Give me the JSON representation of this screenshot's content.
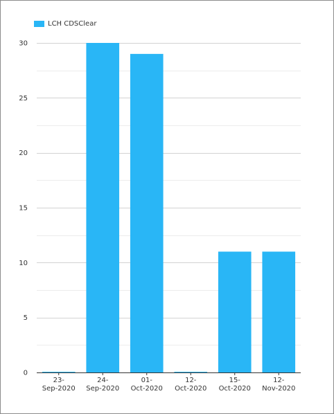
{
  "chart_data": {
    "type": "bar",
    "categories": [
      [
        "23-",
        "Sep-2020"
      ],
      [
        "24-",
        "Sep-2020"
      ],
      [
        "01-",
        "Oct-2020"
      ],
      [
        "12-",
        "Oct-2020"
      ],
      [
        "15-",
        "Oct-2020"
      ],
      [
        "12-",
        "Nov-2020"
      ]
    ],
    "series": [
      {
        "name": "LCH CDSClear",
        "values": [
          0,
          30,
          29,
          0,
          11,
          11
        ],
        "color": "#29b6f6"
      }
    ],
    "ylim": [
      0,
      30
    ],
    "yticks": [
      0,
      5,
      10,
      15,
      20,
      25,
      30
    ],
    "grid": true,
    "legend_position": "top-left"
  }
}
